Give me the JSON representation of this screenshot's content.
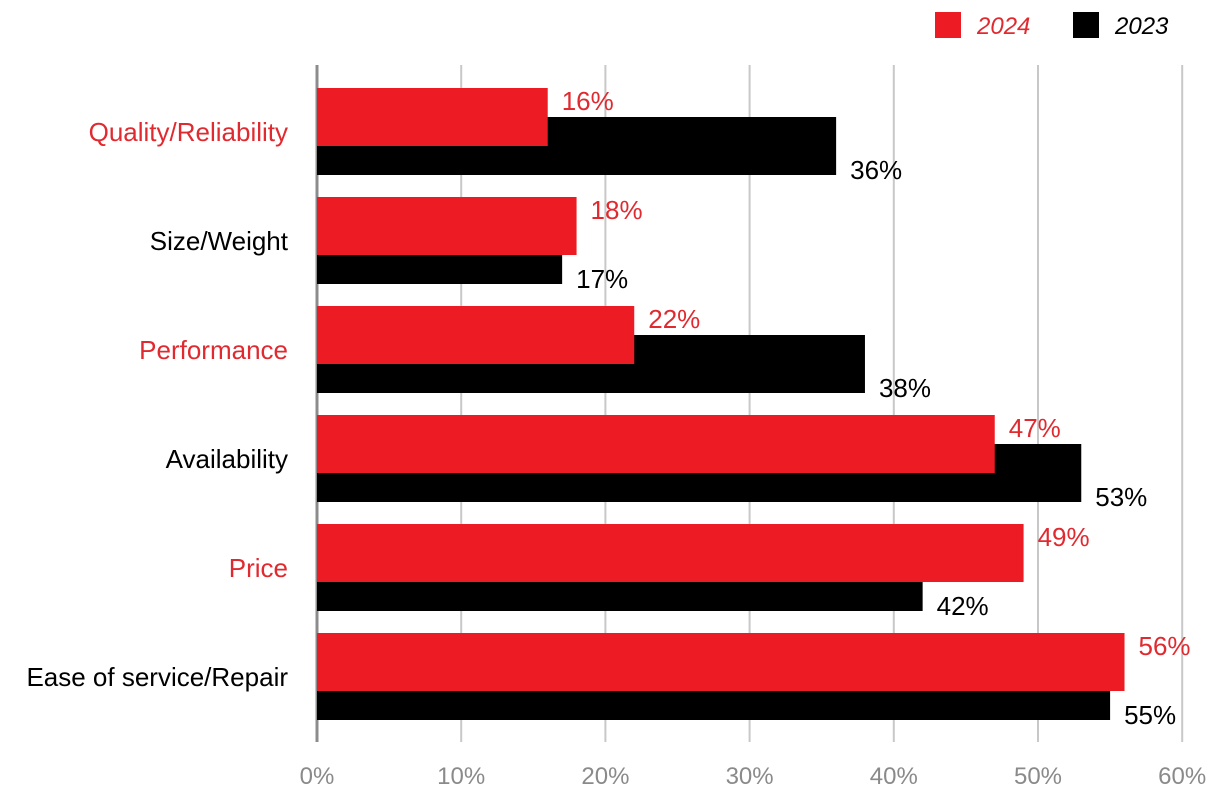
{
  "chart_data": {
    "type": "bar",
    "orientation": "horizontal",
    "categories": [
      "Quality/Reliability",
      "Size/Weight",
      "Performance",
      "Availability",
      "Price",
      "Ease of service/Repair"
    ],
    "highlighted_categories": [
      "Quality/Reliability",
      "Performance",
      "Price"
    ],
    "series": [
      {
        "name": "2024",
        "color": "#ed1c24",
        "values": [
          16,
          18,
          22,
          47,
          49,
          56
        ],
        "labels": [
          "16%",
          "18%",
          "22%",
          "47%",
          "49%",
          "56%"
        ]
      },
      {
        "name": "2023",
        "color": "#000000",
        "values": [
          36,
          17,
          38,
          53,
          42,
          55
        ],
        "labels": [
          "36%",
          "17%",
          "38%",
          "53%",
          "42%",
          "55%"
        ]
      }
    ],
    "xlim": [
      0,
      60
    ],
    "xticks": [
      0,
      10,
      20,
      30,
      40,
      50,
      60
    ],
    "xtick_labels": [
      "0%",
      "10%",
      "20%",
      "30%",
      "40%",
      "50%",
      "60%"
    ],
    "title": "",
    "xlabel": "",
    "ylabel": "",
    "grid": "vertical",
    "legend_position": "top-right",
    "colors": {
      "highlight_text": "#e02a30",
      "normal_text": "#000000",
      "grid": "#c8c8c8",
      "axis": "#8c8c8c",
      "tick_text": "#8a8a8a"
    }
  }
}
